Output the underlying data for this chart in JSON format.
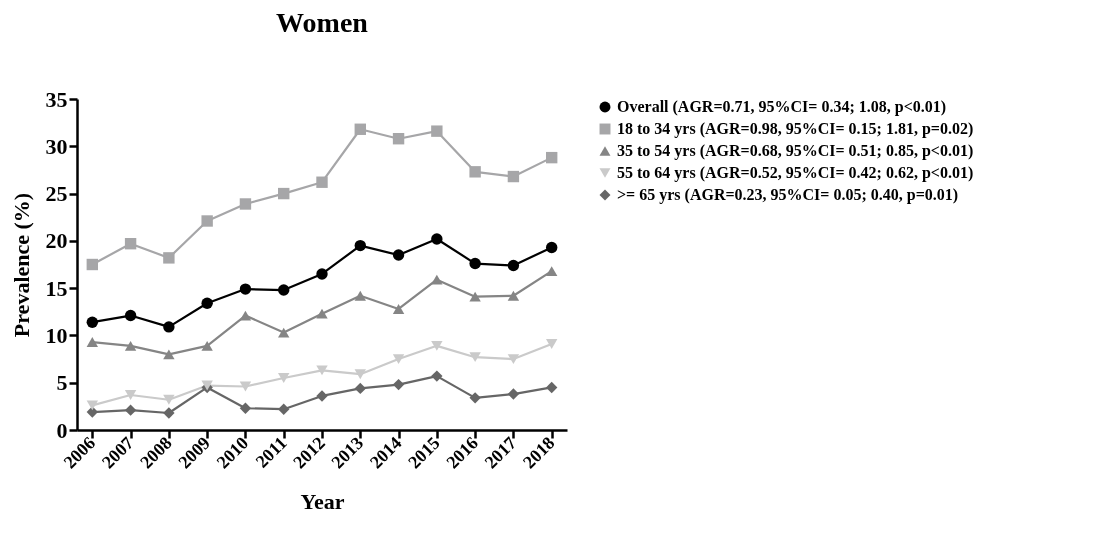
{
  "chart_data": {
    "type": "line",
    "title": "Women",
    "xlabel": "Year",
    "ylabel": "Prevalence (%)",
    "categories": [
      "2006",
      "2007",
      "2008",
      "2009",
      "2010",
      "2011",
      "2012",
      "2013",
      "2014",
      "2015",
      "2016",
      "2017",
      "2018"
    ],
    "ylim": [
      0,
      35
    ],
    "yticks": [
      0,
      5,
      10,
      15,
      20,
      25,
      30,
      35
    ],
    "grid": false,
    "legend": "right",
    "series": [
      {
        "name": "Overall (AGR=0.71, 95%CI= 0.34; 1.08, p<0.01)",
        "color": "#000000",
        "marker": "circle",
        "values": [
          11.4,
          12.1,
          10.9,
          13.4,
          14.9,
          14.8,
          16.5,
          19.5,
          18.5,
          20.2,
          17.6,
          17.4,
          19.3
        ]
      },
      {
        "name": "18 to 34 yrs (AGR=0.98, 95%CI= 0.15; 1.81, p=0.02)",
        "color": "#a6a6a8",
        "marker": "square",
        "values": [
          17.5,
          19.7,
          18.2,
          22.1,
          23.9,
          25.0,
          26.2,
          31.8,
          30.8,
          31.6,
          27.3,
          26.8,
          28.8
        ]
      },
      {
        "name": "35 to 54 yrs (AGR=0.68, 95%CI= 0.51; 0.85, p<0.01)",
        "color": "#858585",
        "marker": "triangle",
        "values": [
          9.3,
          8.9,
          8.0,
          8.9,
          12.1,
          10.3,
          12.3,
          14.2,
          12.8,
          15.9,
          14.1,
          14.2,
          16.8
        ]
      },
      {
        "name": "55 to 64 yrs (AGR=0.52, 95%CI= 0.42; 0.62, p<0.01)",
        "color": "#cacaca",
        "marker": "triangle-down",
        "values": [
          2.6,
          3.7,
          3.2,
          4.7,
          4.6,
          5.5,
          6.3,
          5.9,
          7.5,
          8.9,
          7.7,
          7.5,
          9.1
        ]
      },
      {
        "name": ">= 65 yrs (AGR=0.23, 95%CI= 0.05; 0.40, p=0.01)",
        "color": "#666666",
        "marker": "diamond",
        "values": [
          1.9,
          2.1,
          1.8,
          4.5,
          2.3,
          2.2,
          3.6,
          4.4,
          4.8,
          5.7,
          3.4,
          3.8,
          4.5
        ]
      }
    ]
  }
}
